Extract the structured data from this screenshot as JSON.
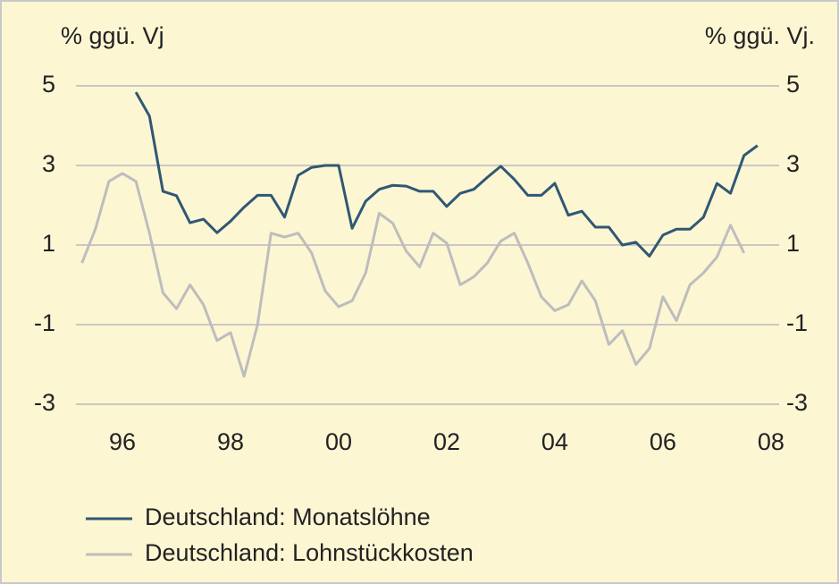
{
  "chart_data": {
    "type": "line",
    "y_label": "% ggü. Vj",
    "y2_label": "% ggü. Vj.",
    "xlim": [
      1995.14,
      2008.15
    ],
    "xticks": [
      {
        "value": 1996,
        "label": "96"
      },
      {
        "value": 1998,
        "label": "98"
      },
      {
        "value": 2000,
        "label": "00"
      },
      {
        "value": 2002,
        "label": "02"
      },
      {
        "value": 2004,
        "label": "04"
      },
      {
        "value": 2006,
        "label": "06"
      },
      {
        "value": 2008,
        "label": "08"
      }
    ],
    "ylim": [
      -3,
      5
    ],
    "yticks": [
      -3,
      -1,
      1,
      3,
      5
    ],
    "y2lim": [
      -3,
      5
    ],
    "y2ticks": [
      -3,
      -1,
      1,
      3,
      5
    ],
    "grid": true,
    "legend": "bottom",
    "series": [
      {
        "name": "Deutschland: Monatslöhne",
        "color": "#2f5875",
        "x": [
          1996.25,
          1996.5,
          1996.75,
          1997,
          1997.25,
          1997.5,
          1997.75,
          1998,
          1998.25,
          1998.5,
          1998.75,
          1999,
          1999.25,
          1999.5,
          1999.75,
          2000,
          2000.25,
          2000.5,
          2000.75,
          2001,
          2001.25,
          2001.5,
          2001.75,
          2002,
          2002.25,
          2002.5,
          2002.75,
          2003,
          2003.25,
          2003.5,
          2003.75,
          2004,
          2004.25,
          2004.5,
          2004.75,
          2005,
          2005.25,
          2005.5,
          2005.75,
          2006,
          2006.25,
          2006.5,
          2006.75,
          2007,
          2007.25,
          2007.5,
          2007.75
        ],
        "values": [
          4.84,
          4.24,
          2.35,
          2.24,
          1.56,
          1.65,
          1.31,
          1.6,
          1.95,
          2.25,
          2.25,
          1.7,
          2.75,
          2.95,
          3.0,
          3.0,
          1.42,
          2.1,
          2.4,
          2.5,
          2.48,
          2.35,
          2.35,
          1.97,
          2.3,
          2.4,
          2.7,
          2.98,
          2.65,
          2.25,
          2.25,
          2.55,
          1.75,
          1.85,
          1.45,
          1.45,
          1.0,
          1.07,
          0.72,
          1.25,
          1.4,
          1.4,
          1.7,
          2.55,
          2.3,
          3.25,
          3.5
        ]
      },
      {
        "name": "Deutschland: Lohnstückkosten",
        "color": "#bdbdbd",
        "x": [
          1995.25,
          1995.5,
          1995.75,
          1996,
          1996.25,
          1996.5,
          1996.75,
          1997,
          1997.25,
          1997.5,
          1997.75,
          1998,
          1998.25,
          1998.5,
          1998.75,
          1999,
          1999.25,
          1999.5,
          1999.75,
          2000,
          2000.25,
          2000.5,
          2000.75,
          2001,
          2001.25,
          2001.5,
          2001.75,
          2002,
          2002.25,
          2002.5,
          2002.75,
          2003,
          2003.25,
          2003.5,
          2003.75,
          2004,
          2004.25,
          2004.5,
          2004.75,
          2005,
          2005.25,
          2005.5,
          2005.75,
          2006,
          2006.25,
          2006.5,
          2006.75,
          2007,
          2007.25,
          2007.5
        ],
        "values": [
          0.55,
          1.4,
          2.6,
          2.8,
          2.6,
          1.3,
          -0.2,
          -0.6,
          0,
          -0.5,
          -1.4,
          -1.2,
          -2.3,
          -1.0,
          1.3,
          1.2,
          1.3,
          0.8,
          -0.15,
          -0.55,
          -0.4,
          0.3,
          1.8,
          1.55,
          0.85,
          0.45,
          1.3,
          1.05,
          0,
          0.2,
          0.55,
          1.1,
          1.3,
          0.55,
          -0.3,
          -0.65,
          -0.5,
          0.1,
          -0.4,
          -1.5,
          -1.15,
          -2.0,
          -1.6,
          -0.3,
          -0.9,
          0,
          0.3,
          0.7,
          1.5,
          0.8
        ]
      }
    ]
  }
}
